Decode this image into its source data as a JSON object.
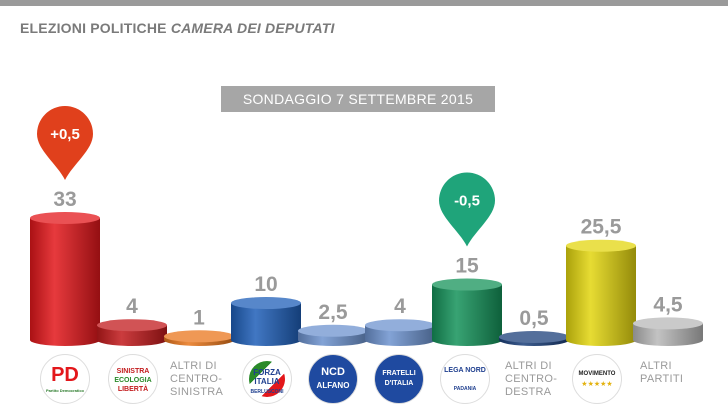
{
  "header": {
    "title_main": "ELEZIONI POLITICHE",
    "title_italic": "CAMERA DEI DEPUTATI",
    "subtitle": "SONDAGGIO 7 SETTEMBRE 2015"
  },
  "chart_data": {
    "type": "bar",
    "title": "ELEZIONI POLITICHE CAMERA DEI DEPUTATI",
    "subtitle": "SONDAGGIO 7 SETTEMBRE 2015",
    "categories": [
      "PD",
      "Sinistra Ecologia Libertà",
      "ALTRI DI CENTRO-SINISTRA",
      "Forza Italia",
      "NCD Alfano",
      "Fratelli d'Italia",
      "Lega Nord",
      "ALTRI DI CENTRO-DESTRA",
      "MoVimento 5 Stelle",
      "ALTRI PARTITI"
    ],
    "values": [
      33,
      4,
      1,
      10,
      2.5,
      4,
      15,
      0.5,
      25.5,
      4.5
    ],
    "value_labels": [
      "33",
      "4",
      "1",
      "10",
      "2,5",
      "4",
      "15",
      "0,5",
      "25,5",
      "4,5"
    ],
    "colors": [
      "#e3171b",
      "#c21a1c",
      "#e9761c",
      "#1f5fb8",
      "#6d93cf",
      "#6d93cf",
      "#15935a",
      "#1b3f7a",
      "#e3d60f",
      "#b8b8b8"
    ],
    "annotations": [
      {
        "category": "PD",
        "text": "+0,5",
        "color": "#e0401c"
      },
      {
        "category": "Lega Nord",
        "text": "-0,5",
        "color": "#1fa47a"
      }
    ],
    "ylim": [
      0,
      33
    ],
    "grid": false,
    "legend": "none"
  },
  "category_texts": {
    "altri_cs": "ALTRI DI\nCENTRO-\nSINISTRA",
    "altri_cd": "ALTRI DI\nCENTRO-\nDESTRA",
    "altri_partiti": "ALTRI\nPARTITI"
  },
  "logos": {
    "pd": {
      "text": "PD",
      "sub": "Partito Democratico"
    },
    "sel": {
      "line1": "SINISTRA",
      "line2": "ECOLOGIA",
      "line3": "LIBERTÀ"
    },
    "fi": {
      "line1": "FORZA",
      "line2": "ITALIA",
      "line3": "BERLUSCONI"
    },
    "ncd": {
      "line1": "NCD",
      "line2": "ALFANO"
    },
    "fdi": {
      "line1": "FRATELLI",
      "line2": "D'ITALIA"
    },
    "lega": {
      "line1": "LEGA NORD",
      "line2": "PADANIA"
    },
    "m5s": {
      "line1": "MOVIMENTO",
      "line2": "★★★★★"
    }
  }
}
